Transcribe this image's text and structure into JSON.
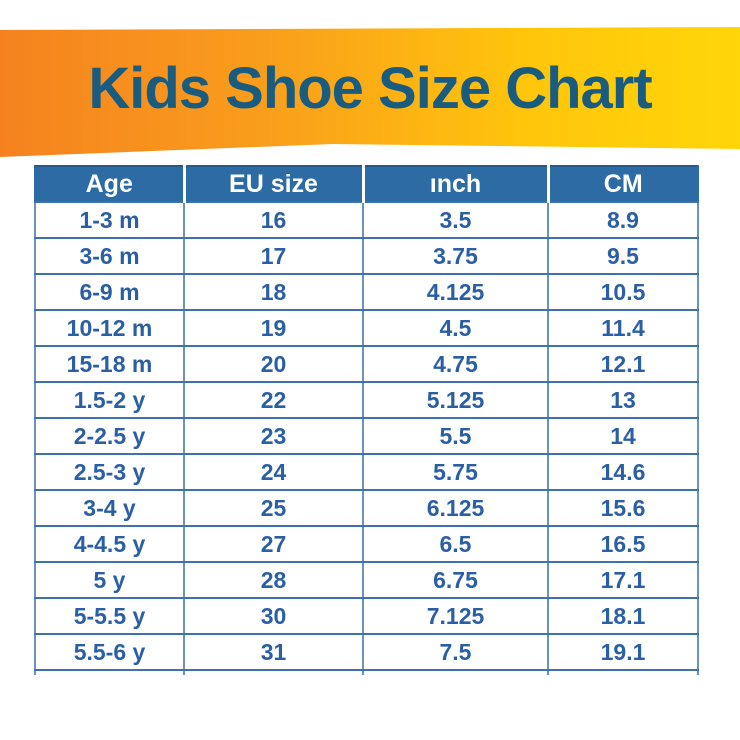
{
  "title": "Kids Shoe Size Chart",
  "colors": {
    "banner_orange": "#F5821F",
    "banner_yellow": "#FFD60A",
    "title_text": "#195C7F",
    "header_bg": "#2D6BA4",
    "header_text": "#FFFFFF",
    "cell_text": "#2B5FA5",
    "grid_horizontal": "#3E72AD",
    "grid_vertical": "#6B94BC"
  },
  "chart_data": {
    "type": "table",
    "title": "Kids Shoe Size Chart",
    "columns": [
      "Age",
      "EU size",
      "ınch",
      "CM"
    ],
    "rows": [
      [
        "1-3 m",
        "16",
        "3.5",
        "8.9"
      ],
      [
        "3-6 m",
        "17",
        "3.75",
        "9.5"
      ],
      [
        "6-9 m",
        "18",
        "4.125",
        "10.5"
      ],
      [
        "10-12 m",
        "19",
        "4.5",
        "11.4"
      ],
      [
        "15-18 m",
        "20",
        "4.75",
        "12.1"
      ],
      [
        "1.5-2 y",
        "22",
        "5.125",
        "13"
      ],
      [
        "2-2.5 y",
        "23",
        "5.5",
        "14"
      ],
      [
        "2.5-3 y",
        "24",
        "5.75",
        "14.6"
      ],
      [
        "3-4 y",
        "25",
        "6.125",
        "15.6"
      ],
      [
        "4-4.5 y",
        "27",
        "6.5",
        "16.5"
      ],
      [
        "5 y",
        "28",
        "6.75",
        "17.1"
      ],
      [
        "5-5.5 y",
        "30",
        "7.125",
        "18.1"
      ],
      [
        "5.5-6 y",
        "31",
        "7.5",
        "19.1"
      ]
    ]
  }
}
